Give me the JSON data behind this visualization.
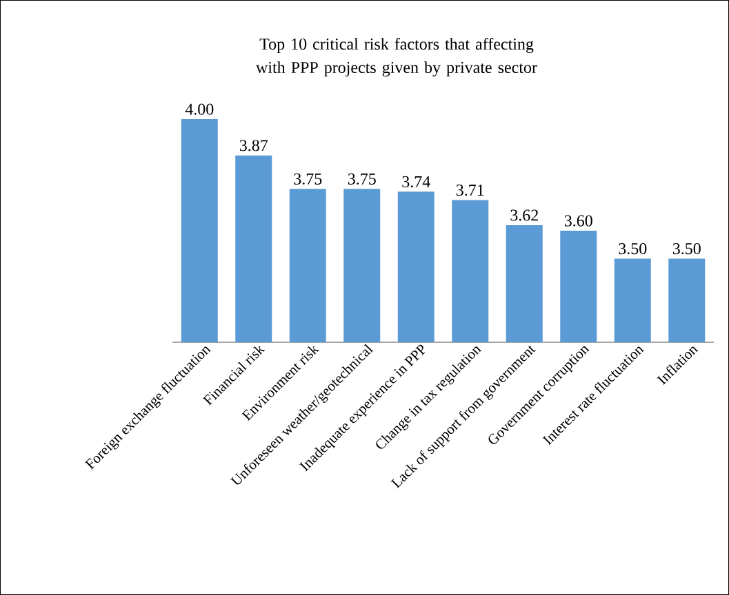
{
  "chart_data": {
    "type": "bar",
    "title": "Top 10 critical risk factors that affecting with PPP projects given by private sector",
    "categories": [
      "Foreign exchange fluctuation",
      "Financial risk",
      "Environment risk",
      "Unforeseen weather/geotechnical",
      "Inadequate experience in PPP",
      "Change in tax regulation",
      "Lack of support from government",
      "Government corruption",
      "Interest rate fluctuation",
      "Inflation"
    ],
    "values": [
      4.0,
      3.87,
      3.75,
      3.75,
      3.74,
      3.71,
      3.62,
      3.6,
      3.5,
      3.5
    ],
    "value_labels": [
      "4.00",
      "3.87",
      "3.75",
      "3.75",
      "3.74",
      "3.71",
      "3.62",
      "3.60",
      "3.50",
      "3.50"
    ],
    "color": "#5b9bd5",
    "ylim": [
      3.2,
      4.0
    ],
    "tick_labels": "x",
    "grid": false
  }
}
